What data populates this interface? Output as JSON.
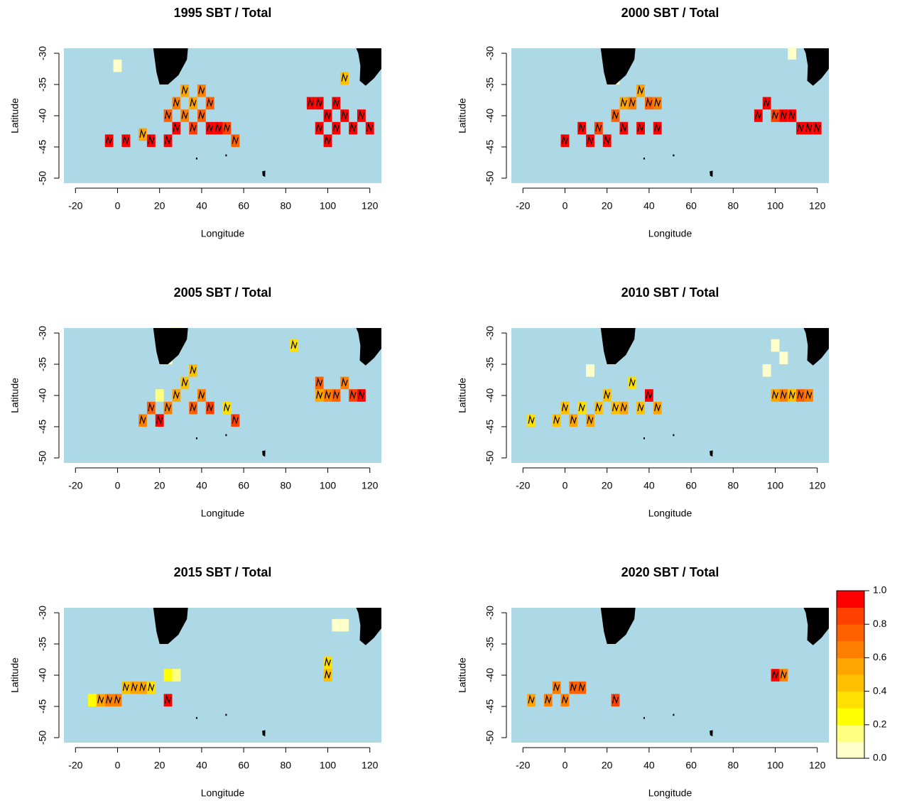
{
  "chart_data": [
    {
      "type": "heatmap",
      "title": "1995 SBT / Total",
      "x_label": "Longitude",
      "y_label": "Latitude",
      "xlim": [
        -25.5,
        125.5
      ],
      "ylim": [
        -50.8,
        -29.2
      ],
      "xticks": [
        -20,
        0,
        20,
        40,
        60,
        80,
        100,
        120
      ],
      "yticks": [
        -30,
        -35,
        -40,
        -45,
        -50
      ],
      "x": [
        -4,
        4,
        12,
        16,
        24,
        24,
        28,
        28,
        32,
        32,
        36,
        36,
        40,
        40,
        44,
        44,
        48,
        52,
        56,
        92,
        96,
        100,
        104,
        104,
        96,
        108,
        112,
        116,
        120,
        108,
        100,
        28,
        0
      ],
      "y": [
        -44,
        -44,
        -43,
        -44,
        -44,
        -40,
        -38,
        -42,
        -36,
        -40,
        -38,
        -42,
        -36,
        -40,
        -42,
        -38,
        -42,
        -42,
        -44,
        -38,
        -38,
        -40,
        -38,
        -42,
        -42,
        -40,
        -42,
        -40,
        -42,
        -34,
        -44,
        -32,
        -32
      ],
      "values": [
        0.9,
        0.9,
        0.5,
        0.9,
        0.9,
        0.7,
        0.6,
        0.9,
        0.5,
        0.6,
        0.5,
        0.8,
        0.6,
        0.7,
        0.9,
        0.7,
        0.9,
        0.8,
        0.7,
        0.95,
        0.95,
        0.95,
        0.95,
        0.95,
        0.95,
        0.95,
        0.95,
        0.95,
        0.95,
        0.4,
        0.95,
        0.05,
        0.05
      ]
    },
    {
      "type": "heatmap",
      "title": "2000 SBT / Total",
      "x_label": "Longitude",
      "y_label": "Latitude",
      "xlim": [
        -25.5,
        125.5
      ],
      "ylim": [
        -50.8,
        -29.2
      ],
      "xticks": [
        -20,
        0,
        20,
        40,
        60,
        80,
        100,
        120
      ],
      "yticks": [
        -30,
        -35,
        -40,
        -45,
        -50
      ],
      "x": [
        0,
        8,
        12,
        16,
        20,
        24,
        28,
        28,
        32,
        36,
        36,
        40,
        44,
        44,
        24,
        28,
        96,
        100,
        104,
        108,
        112,
        116,
        120,
        92,
        108
      ],
      "y": [
        -44,
        -42,
        -44,
        -42,
        -44,
        -40,
        -42,
        -38,
        -38,
        -42,
        -36,
        -38,
        -42,
        -38,
        -34,
        -32,
        -38,
        -40,
        -40,
        -40,
        -42,
        -42,
        -42,
        -40,
        -30
      ],
      "values": [
        0.95,
        0.9,
        0.9,
        0.8,
        0.9,
        0.7,
        0.9,
        0.5,
        0.6,
        0.9,
        0.5,
        0.7,
        0.9,
        0.6,
        0.05,
        0.05,
        0.95,
        0.8,
        0.9,
        0.95,
        0.95,
        0.95,
        0.95,
        0.95,
        0.05
      ]
    },
    {
      "type": "heatmap",
      "title": "2005 SBT / Total",
      "x_label": "Longitude",
      "y_label": "Latitude",
      "xlim": [
        -25.5,
        125.5
      ],
      "ylim": [
        -50.8,
        -29.2
      ],
      "xticks": [
        -20,
        0,
        20,
        40,
        60,
        80,
        100,
        120
      ],
      "yticks": [
        -30,
        -35,
        -40,
        -45,
        -50
      ],
      "x": [
        12,
        16,
        20,
        20,
        24,
        28,
        32,
        36,
        36,
        40,
        44,
        52,
        56,
        24,
        28,
        84,
        96,
        100,
        104,
        108,
        112,
        116,
        96
      ],
      "y": [
        -44,
        -42,
        -44,
        -40,
        -42,
        -40,
        -38,
        -36,
        -42,
        -40,
        -42,
        -42,
        -44,
        -34,
        -30,
        -32,
        -38,
        -40,
        -40,
        -38,
        -40,
        -40,
        -40
      ],
      "values": [
        0.6,
        0.7,
        0.9,
        0.1,
        0.6,
        0.5,
        0.45,
        0.4,
        0.7,
        0.6,
        0.8,
        0.3,
        0.8,
        0.05,
        0.05,
        0.3,
        0.7,
        0.6,
        0.7,
        0.65,
        0.8,
        0.9,
        0.5
      ]
    },
    {
      "type": "heatmap",
      "title": "2010 SBT / Total",
      "x_label": "Longitude",
      "y_label": "Latitude",
      "xlim": [
        -25.5,
        125.5
      ],
      "ylim": [
        -50.8,
        -29.2
      ],
      "xticks": [
        -20,
        0,
        20,
        40,
        60,
        80,
        100,
        120
      ],
      "yticks": [
        -30,
        -35,
        -40,
        -45,
        -50
      ],
      "x": [
        -16,
        -4,
        0,
        4,
        8,
        12,
        16,
        20,
        24,
        28,
        32,
        36,
        40,
        44,
        12,
        28,
        100,
        104,
        96,
        100,
        104,
        108,
        112,
        116
      ],
      "y": [
        -44,
        -44,
        -42,
        -44,
        -42,
        -44,
        -42,
        -40,
        -42,
        -42,
        -38,
        -42,
        -40,
        -42,
        -36,
        -32,
        -32,
        -34,
        -36,
        -40,
        -40,
        -40,
        -40,
        -40
      ],
      "values": [
        0.3,
        0.4,
        0.4,
        0.5,
        0.3,
        0.5,
        0.4,
        0.45,
        0.4,
        0.5,
        0.3,
        0.4,
        0.9,
        0.5,
        0.05,
        0.05,
        0.05,
        0.05,
        0.05,
        0.5,
        0.6,
        0.45,
        0.7,
        0.6
      ]
    },
    {
      "type": "heatmap",
      "title": "2015 SBT / Total",
      "x_label": "Longitude",
      "y_label": "Latitude",
      "xlim": [
        -25.5,
        125.5
      ],
      "ylim": [
        -50.8,
        -29.2
      ],
      "xticks": [
        -20,
        0,
        20,
        40,
        60,
        80,
        100,
        120
      ],
      "yticks": [
        -30,
        -35,
        -40,
        -45,
        -50
      ],
      "x": [
        -12,
        -8,
        -4,
        0,
        4,
        8,
        12,
        16,
        24,
        28,
        24,
        100,
        100,
        104,
        108
      ],
      "y": [
        -44,
        -44,
        -44,
        -44,
        -42,
        -42,
        -42,
        -42,
        -44,
        -40,
        -40,
        -38,
        -40,
        -32,
        -32
      ],
      "values": [
        0.2,
        0.5,
        0.6,
        0.6,
        0.4,
        0.5,
        0.5,
        0.3,
        0.9,
        0.1,
        0.2,
        0.3,
        0.4,
        0.05,
        0.05
      ]
    },
    {
      "type": "heatmap",
      "title": "2020 SBT / Total",
      "x_label": "Longitude",
      "y_label": "Latitude",
      "xlim": [
        -25.5,
        125.5
      ],
      "ylim": [
        -50.8,
        -29.2
      ],
      "xticks": [
        -20,
        0,
        20,
        40,
        60,
        80,
        100,
        120
      ],
      "yticks": [
        -30,
        -35,
        -40,
        -45,
        -50
      ],
      "x": [
        -16,
        -8,
        -4,
        0,
        4,
        8,
        24,
        100,
        104,
        28
      ],
      "y": [
        -44,
        -44,
        -42,
        -44,
        -42,
        -42,
        -44,
        -40,
        -40,
        -32
      ],
      "values": [
        0.5,
        0.6,
        0.6,
        0.6,
        0.7,
        0.7,
        0.8,
        0.9,
        0.6,
        0.05
      ]
    }
  ],
  "sea_color": "#add8e6",
  "land_color": "#000000",
  "colorbar": {
    "lim": [
      0,
      1
    ],
    "colors": [
      "#ffffcc",
      "#ffff80",
      "#ffff00",
      "#ffe000",
      "#ffc000",
      "#ffa500",
      "#ff8000",
      "#ff6000",
      "#ff4000",
      "#ff0000"
    ],
    "ticks": [
      {
        "value": 0,
        "label": "0.0"
      },
      0.2,
      0.4,
      0.6,
      0.8,
      {
        "value": 1,
        "label": "1.0"
      }
    ]
  }
}
